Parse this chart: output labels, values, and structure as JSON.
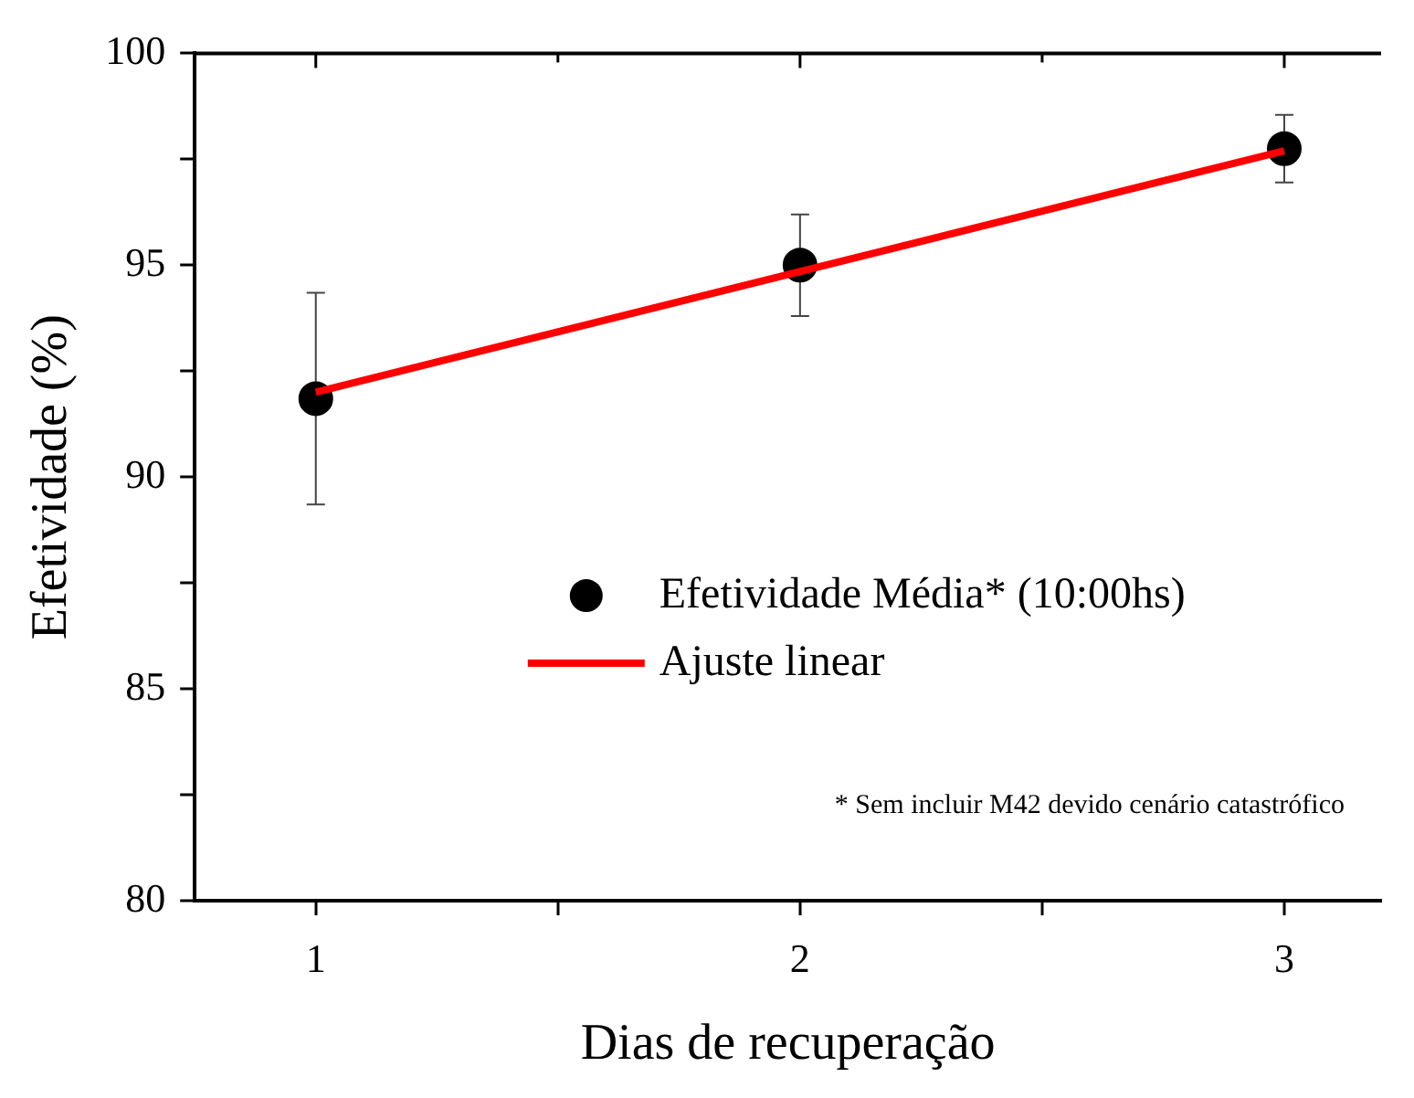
{
  "chart_data": {
    "type": "scatter",
    "xlabel": "Dias de recuperação",
    "ylabel": "Efetividade (%)",
    "xlim": [
      0.75,
      3.2
    ],
    "xticks": [
      1,
      {
        "value": 1.5,
        "label": null
      },
      2,
      {
        "value": 2.5,
        "label": null
      },
      3
    ],
    "ylim": [
      80,
      100
    ],
    "yticks": [
      80,
      {
        "value": 82.5,
        "label": null
      },
      85,
      {
        "value": 87.5,
        "label": null
      },
      90,
      {
        "value": 92.5,
        "label": null
      },
      95,
      {
        "value": 97.5,
        "label": null
      },
      100
    ],
    "grid": false,
    "legend": "right",
    "annotations": [
      "* Sem incluir M42 devido cenário catastrófico"
    ],
    "series": [
      {
        "name": "Efetividade Média* (10:00hs)",
        "type": "scatter",
        "color": "#000000",
        "marker": "circle",
        "x": [
          1,
          2,
          3
        ],
        "values": [
          91.85,
          95.0,
          97.75
        ],
        "errors": [
          2.5,
          1.2,
          0.8
        ]
      },
      {
        "name": "Ajuste linear",
        "type": "line",
        "color": "#ff0000",
        "marker": "none",
        "line_style": "solid",
        "x": [
          1,
          3
        ],
        "values": [
          92.0,
          97.7
        ]
      }
    ]
  }
}
